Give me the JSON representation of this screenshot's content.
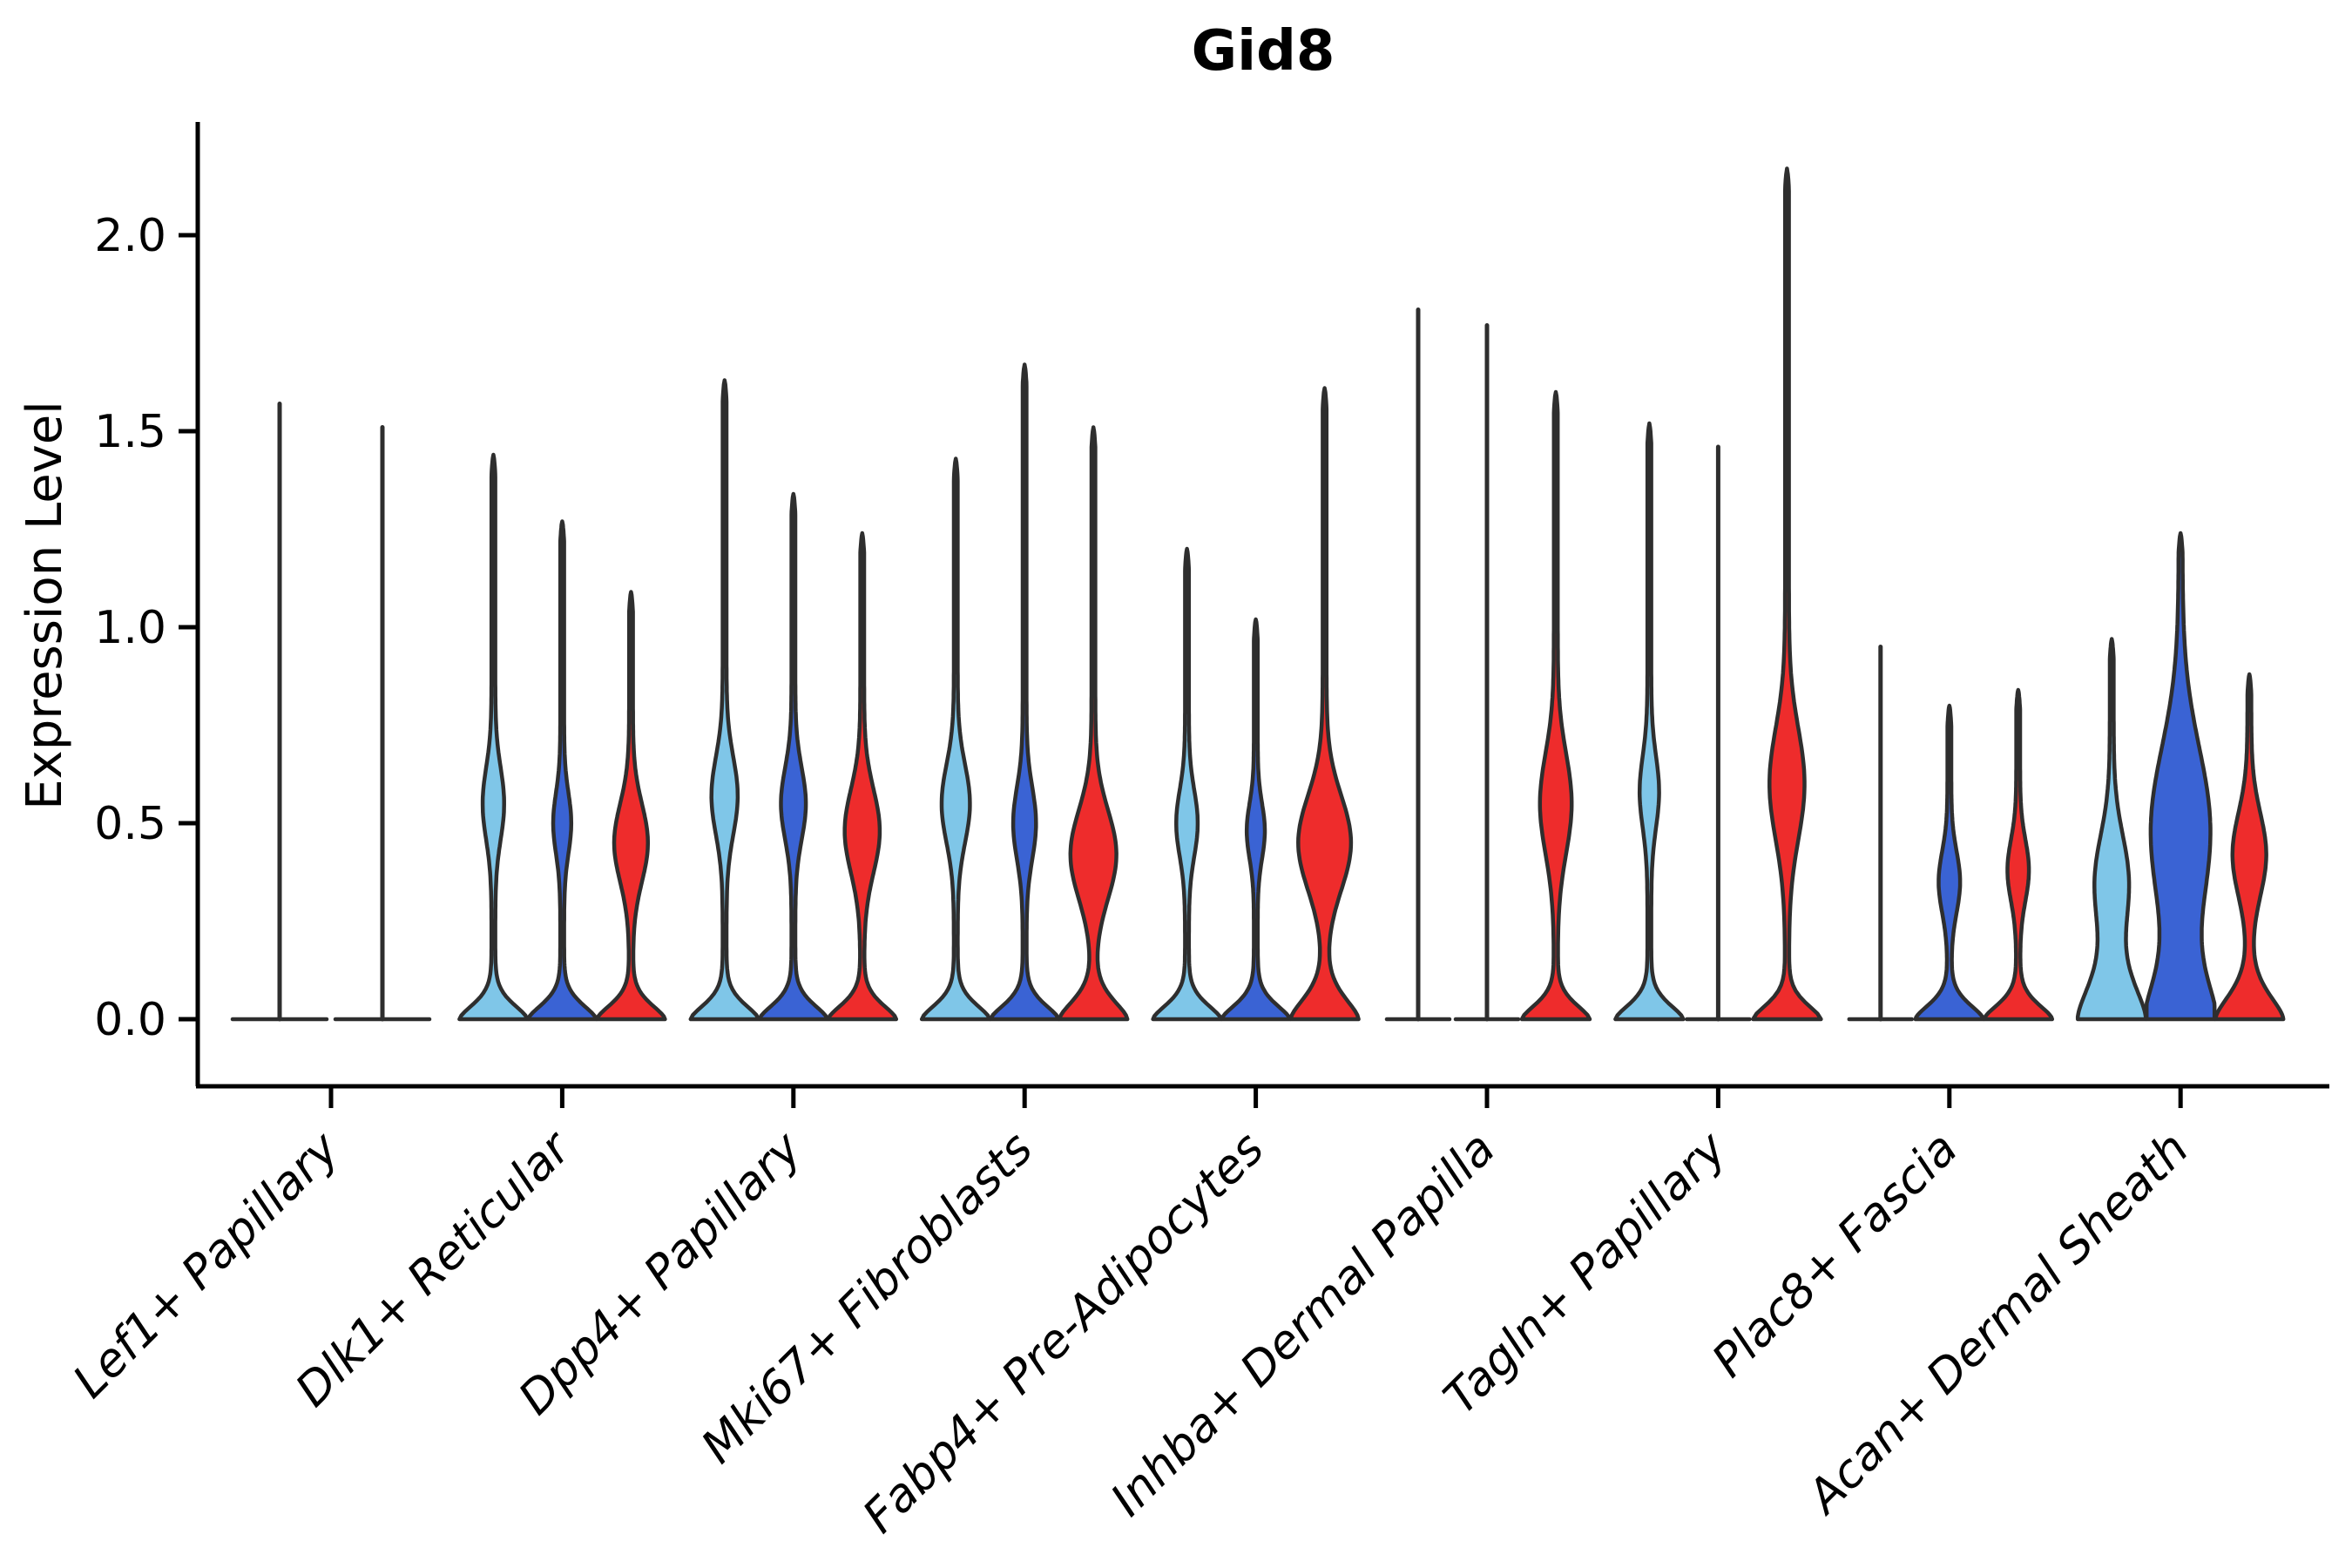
{
  "chart_data": {
    "type": "violin",
    "title": "Gid8",
    "ylabel": "Expression Level",
    "xlabel": "",
    "ytick_labels": [
      "0.0",
      "0.5",
      "1.0",
      "1.5",
      "2.0"
    ],
    "ytick_values": [
      0.0,
      0.5,
      1.0,
      1.5,
      2.0
    ],
    "ylim": [
      -0.17,
      2.28
    ],
    "grid": false,
    "legend_position": "none",
    "outline_color": "#2E2E2E",
    "axis_color": "#000000",
    "split_colors": {
      "light-blue": "#7FC6E8",
      "dark-blue": "#3A63D4",
      "red": "#EE2C2C"
    },
    "categories": [
      "Lef1+ Papillary",
      "Dlk1+ Reticular",
      "Dpp4+ Papillary",
      "Mki67+ Fibroblasts",
      "Fabp4+ Pre-Adipocytes",
      "Inhba+ Dermal Papilla",
      "Tagln+ Papillary",
      "Plac8+ Fascia",
      "Acan+ Dermal Sheath"
    ],
    "groups": [
      {
        "category": "Lef1+ Papillary",
        "violins": [
          {
            "split": "light-blue",
            "style": "line",
            "max": 1.57
          },
          {
            "split": "dark-blue",
            "style": "line",
            "max": 1.51
          }
        ]
      },
      {
        "category": "Dlk1+ Reticular",
        "violins": [
          {
            "split": "light-blue",
            "style": "violin",
            "max": 1.44,
            "mode": 0.55,
            "mode_width": 0.26,
            "mode_spread": 0.13
          },
          {
            "split": "dark-blue",
            "style": "violin",
            "max": 1.27,
            "mode": 0.5,
            "mode_width": 0.21,
            "mode_spread": 0.11
          },
          {
            "split": "red",
            "style": "violin",
            "max": 1.09,
            "mode": 0.45,
            "mode_width": 0.44,
            "mode_spread": 0.14
          }
        ]
      },
      {
        "category": "Dpp4+ Papillary",
        "violins": [
          {
            "split": "light-blue",
            "style": "violin",
            "max": 1.63,
            "mode": 0.57,
            "mode_width": 0.33,
            "mode_spread": 0.14
          },
          {
            "split": "dark-blue",
            "style": "violin",
            "max": 1.34,
            "mode": 0.55,
            "mode_width": 0.31,
            "mode_spread": 0.13
          },
          {
            "split": "red",
            "style": "violin",
            "max": 1.24,
            "mode": 0.48,
            "mode_width": 0.46,
            "mode_spread": 0.15
          }
        ]
      },
      {
        "category": "Mki67+ Fibroblasts",
        "violins": [
          {
            "split": "light-blue",
            "style": "violin",
            "max": 1.43,
            "mode": 0.55,
            "mode_width": 0.36,
            "mode_spread": 0.14
          },
          {
            "split": "dark-blue",
            "style": "violin",
            "max": 1.67,
            "mode": 0.5,
            "mode_width": 0.28,
            "mode_spread": 0.13
          },
          {
            "split": "red",
            "style": "violin",
            "max": 1.51,
            "mode": 0.42,
            "mode_width": 0.62,
            "mode_spread": 0.16,
            "base_spread": 0.07
          }
        ]
      },
      {
        "category": "Fabp4+ Pre-Adipocytes",
        "violins": [
          {
            "split": "light-blue",
            "style": "violin",
            "max": 1.2,
            "mode": 0.5,
            "mode_width": 0.26,
            "mode_spread": 0.12
          },
          {
            "split": "dark-blue",
            "style": "violin",
            "max": 1.02,
            "mode": 0.48,
            "mode_width": 0.21,
            "mode_spread": 0.1
          },
          {
            "split": "red",
            "style": "violin",
            "max": 1.61,
            "mode": 0.45,
            "mode_width": 0.72,
            "mode_spread": 0.17,
            "base_spread": 0.08
          }
        ]
      },
      {
        "category": "Inhba+ Dermal Papilla",
        "violins": [
          {
            "split": "light-blue",
            "style": "line",
            "max": 1.81
          },
          {
            "split": "dark-blue",
            "style": "line",
            "max": 1.77
          },
          {
            "split": "red",
            "style": "violin",
            "max": 1.6,
            "mode": 0.55,
            "mode_width": 0.41,
            "mode_spread": 0.18
          }
        ]
      },
      {
        "category": "Tagln+ Papillary",
        "violins": [
          {
            "split": "light-blue",
            "style": "violin",
            "max": 1.52,
            "mode": 0.58,
            "mode_width": 0.23,
            "mode_spread": 0.13
          },
          {
            "split": "dark-blue",
            "style": "line",
            "max": 1.46
          },
          {
            "split": "red",
            "style": "violin",
            "max": 2.17,
            "mode": 0.6,
            "mode_width": 0.46,
            "mode_spread": 0.2
          }
        ]
      },
      {
        "category": "Plac8+ Fascia",
        "violins": [
          {
            "split": "light-blue",
            "style": "line",
            "max": 0.95
          },
          {
            "split": "dark-blue",
            "style": "violin",
            "max": 0.8,
            "mode": 0.35,
            "mode_width": 0.26,
            "mode_spread": 0.11
          },
          {
            "split": "red",
            "style": "violin",
            "max": 0.84,
            "mode": 0.38,
            "mode_width": 0.26,
            "mode_spread": 0.11
          }
        ]
      },
      {
        "category": "Acan+ Dermal Sheath",
        "violins": [
          {
            "split": "light-blue",
            "style": "violin",
            "max": 0.97,
            "mode": 0.35,
            "mode_width": 0.44,
            "mode_spread": 0.17,
            "base_spread": 0.14
          },
          {
            "split": "dark-blue",
            "style": "violin",
            "max": 1.24,
            "mode": 0.48,
            "mode_width": 0.82,
            "mode_spread": 0.3,
            "base_spread": 0.16
          },
          {
            "split": "red",
            "style": "violin",
            "max": 0.88,
            "mode": 0.42,
            "mode_width": 0.44,
            "mode_spread": 0.15,
            "base_spread": 0.09
          }
        ]
      }
    ]
  }
}
